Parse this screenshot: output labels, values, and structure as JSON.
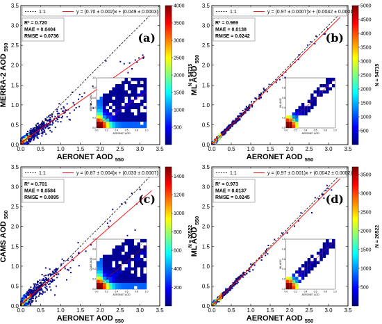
{
  "legend": {
    "one_to_one": "1:1"
  },
  "colors": {
    "jet": [
      "#00007f",
      "#0000ff",
      "#007fff",
      "#00ffff",
      "#7fff7f",
      "#ffff00",
      "#ff7f00",
      "#ff0000",
      "#7f0000"
    ],
    "point": "#0a0a8c",
    "fit": "#ff0000",
    "identity": "#000000"
  },
  "chart_data": [
    {
      "type": "scatter",
      "panel_label": "(a)",
      "xlabel": "AERONET AOD",
      "xlabel_sub": "550",
      "ylabel": "MERRA-2 AOD",
      "ylabel_sub": "550",
      "xlim": [
        0,
        3.5
      ],
      "ylim": [
        0,
        3.5
      ],
      "xticks": [
        "0.0",
        "0.5",
        "1.0",
        "1.5",
        "2.0",
        "2.5",
        "3.0",
        "3.5"
      ],
      "yticks": [
        "0.0",
        "0.5",
        "1.0",
        "1.5",
        "2.0",
        "2.5",
        "3.0",
        "3.5"
      ],
      "fit_label": "y = (0.70 ± 0.002)x + (0.049 ± 0.0003)",
      "fit": {
        "slope": 0.7,
        "intercept": 0.049,
        "x_end": 3.1
      },
      "stats": [
        "R² = 0.720",
        "MAE = 0.0404",
        "RMSE = 0.0736"
      ],
      "colorbar": {
        "label": "N = 54715",
        "ticks": [
          "500",
          "1000",
          "1500",
          "2000",
          "2500",
          "3000",
          "3500",
          "4000"
        ],
        "max": 4000
      },
      "inset": {
        "xlabel": "AERONET AOD",
        "ylabel": "MERRA-2 AOD",
        "ticks": [
          "0.0",
          "0.2",
          "0.4",
          "0.6",
          "0.8",
          "1.0"
        ],
        "pattern": "spread"
      },
      "scatter": {
        "n": 850,
        "slope": 0.7,
        "intercept": 0.049,
        "noise": 0.12,
        "seed": 11
      }
    },
    {
      "type": "scatter",
      "panel_label": "(b)",
      "xlabel": "AERONET AOD",
      "xlabel_sub": "550",
      "ylabel": "ML AOD",
      "ylabel_sub": "550",
      "xlim": [
        0,
        3.5
      ],
      "ylim": [
        0,
        3.5
      ],
      "xticks": [
        "0.0",
        "0.5",
        "1.0",
        "1.5",
        "2.0",
        "2.5",
        "3.0",
        "3.5"
      ],
      "yticks": [
        "0.0",
        "0.5",
        "1.0",
        "1.5",
        "2.0",
        "2.5",
        "3.0",
        "3.5"
      ],
      "fit_label": "y = (0.97 ± 0.0007)x + (0.0042 ± 0.0001)",
      "fit": {
        "slope": 0.97,
        "intercept": 0.0042,
        "x_end": 3.3
      },
      "stats": [
        "R² = 0.969",
        "MAE = 0.0138",
        "RMSE = 0.0242"
      ],
      "colorbar": {
        "label": "N = 54715",
        "ticks": [
          "500",
          "1000",
          "1500",
          "2000",
          "2500",
          "3000",
          "3500",
          "4000",
          "4500",
          "5000"
        ],
        "max": 5000
      },
      "inset": {
        "xlabel": "AERONET AOD",
        "ylabel": "ML AOD",
        "ticks": [
          "0.0",
          "0.2",
          "0.4",
          "0.6",
          "0.8",
          "1.0"
        ],
        "pattern": "tight"
      },
      "scatter": {
        "n": 800,
        "slope": 0.97,
        "intercept": 0.0042,
        "noise": 0.045,
        "seed": 23
      }
    },
    {
      "type": "scatter",
      "panel_label": "(c)",
      "xlabel": "AERONET AOD",
      "xlabel_sub": "550",
      "ylabel": "CAMS AOD",
      "ylabel_sub": "550",
      "xlim": [
        0,
        3.5
      ],
      "ylim": [
        0,
        3.5
      ],
      "xticks": [
        "0.0",
        "0.5",
        "1.0",
        "1.5",
        "2.0",
        "2.5",
        "3.0",
        "3.5"
      ],
      "yticks": [
        "0.0",
        "0.5",
        "1.0",
        "1.5",
        "2.0",
        "2.5",
        "3.0",
        "3.5"
      ],
      "fit_label": "y = (0.87 ± 0.004)x + (0.033 ± 0.0007)",
      "fit": {
        "slope": 0.87,
        "intercept": 0.033,
        "x_end": 3.3
      },
      "stats": [
        "R² = 0.701",
        "MAE = 0.0584",
        "RMSE = 0.0895"
      ],
      "colorbar": {
        "label": "N = 26522",
        "ticks": [
          "200",
          "400",
          "600",
          "800",
          "1000",
          "1200",
          "1400"
        ],
        "max": 1500
      },
      "inset": {
        "xlabel": "AERONET AOD",
        "ylabel": "CAMS AOD",
        "ticks": [
          "0.0",
          "0.2",
          "0.4",
          "0.6",
          "0.8",
          "1.0"
        ],
        "pattern": "spread"
      },
      "scatter": {
        "n": 650,
        "slope": 0.87,
        "intercept": 0.033,
        "noise": 0.15,
        "seed": 37
      }
    },
    {
      "type": "scatter",
      "panel_label": "(d)",
      "xlabel": "AERONET AOD",
      "xlabel_sub": "550",
      "ylabel": "ML AOD",
      "ylabel_sub": "550",
      "xlim": [
        0,
        3.5
      ],
      "ylim": [
        0,
        3.5
      ],
      "xticks": [
        "0.0",
        "0.5",
        "1.0",
        "1.5",
        "2.0",
        "2.5",
        "3.0",
        "3.5"
      ],
      "yticks": [
        "0.0",
        "0.5",
        "1.0",
        "1.5",
        "2.0",
        "2.5",
        "3.0",
        "3.5"
      ],
      "fit_label": "y = (0.97 ± 0.001)x + (0.0042 ± 0.0002)",
      "fit": {
        "slope": 0.97,
        "intercept": 0.0042,
        "x_end": 3.3
      },
      "stats": [
        "R² = 0.973",
        "MAE = 0.0137",
        "RMSE = 0.0245"
      ],
      "colorbar": {
        "label": "N = 26522",
        "ticks": [
          "500",
          "1000",
          "1500",
          "2000",
          "2500",
          "3000",
          "3500"
        ],
        "max": 3700
      },
      "inset": {
        "xlabel": "AERONET AOD",
        "ylabel": "ML AOD",
        "ticks": [
          "0.0",
          "0.2",
          "0.4",
          "0.6",
          "0.8",
          "1.0"
        ],
        "pattern": "tight"
      },
      "scatter": {
        "n": 550,
        "slope": 0.97,
        "intercept": 0.0042,
        "noise": 0.045,
        "seed": 53
      }
    }
  ]
}
